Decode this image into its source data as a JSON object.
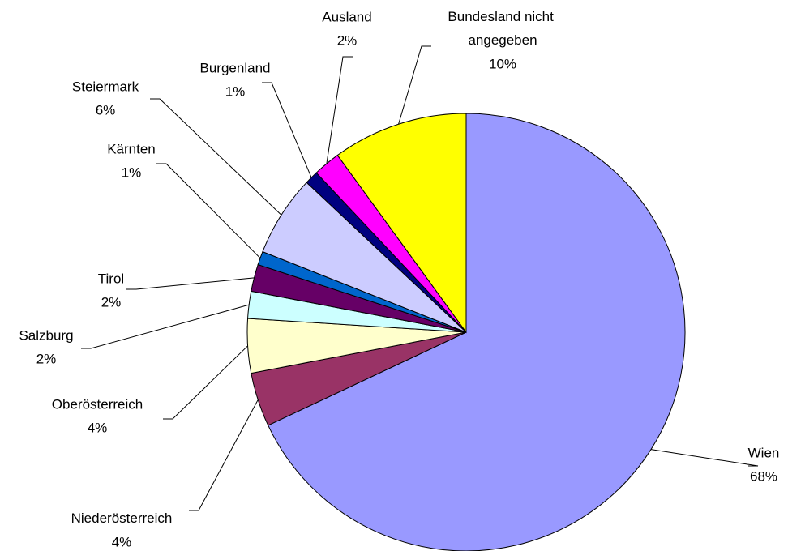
{
  "chart_data": {
    "type": "pie",
    "categories": [
      "Wien",
      "Niederösterreich",
      "Oberösterreich",
      "Salzburg",
      "Tirol",
      "Kärnten",
      "Steiermark",
      "Burgenland",
      "Ausland",
      "Bundesland nicht angegeben"
    ],
    "values": [
      68,
      4,
      4,
      2,
      2,
      1,
      6,
      1,
      2,
      10
    ],
    "value_labels": [
      "68%",
      "4%",
      "4%",
      "2%",
      "2%",
      "1%",
      "6%",
      "1%",
      "2%",
      "10%"
    ],
    "colors": [
      "#9999ff",
      "#993366",
      "#ffffcc",
      "#ccffff",
      "#660066",
      "#0066cc",
      "#ccccff",
      "#000080",
      "#ff00ff",
      "#ffff00"
    ]
  }
}
